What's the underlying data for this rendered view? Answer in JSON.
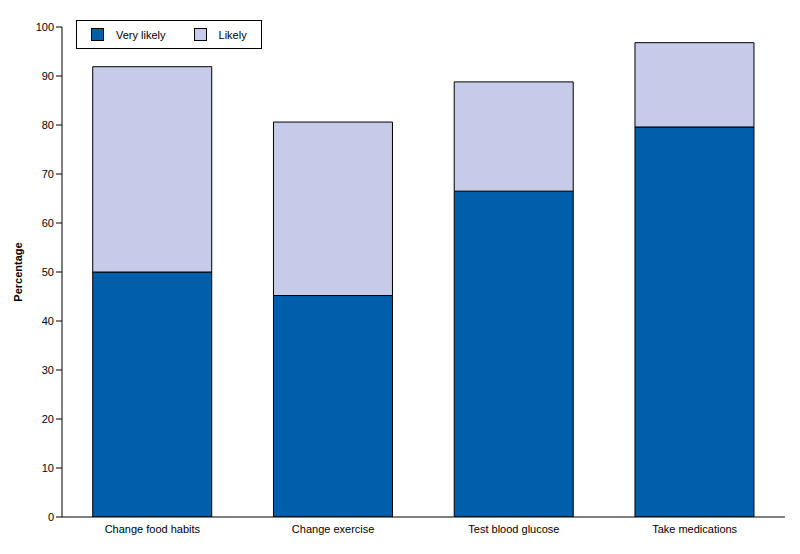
{
  "chart_data": {
    "type": "bar",
    "stacked": true,
    "y_label": "Percentage",
    "categories": [
      "Change food habits",
      "Change exercise",
      "Test blood glucose",
      "Take medications"
    ],
    "series": [
      {
        "name": "Very likely",
        "color": "#005eaa",
        "values": [
          50.0,
          45.2,
          66.5,
          79.6
        ]
      },
      {
        "name": "Likely",
        "color": "#c5cbe8",
        "values": [
          41.9,
          35.4,
          22.3,
          17.2
        ]
      }
    ],
    "ylim": [
      0,
      100
    ],
    "yticks": [
      0,
      10,
      20,
      30,
      40,
      50,
      60,
      70,
      80,
      90,
      100
    ],
    "grid": false,
    "legend": "upper left"
  }
}
